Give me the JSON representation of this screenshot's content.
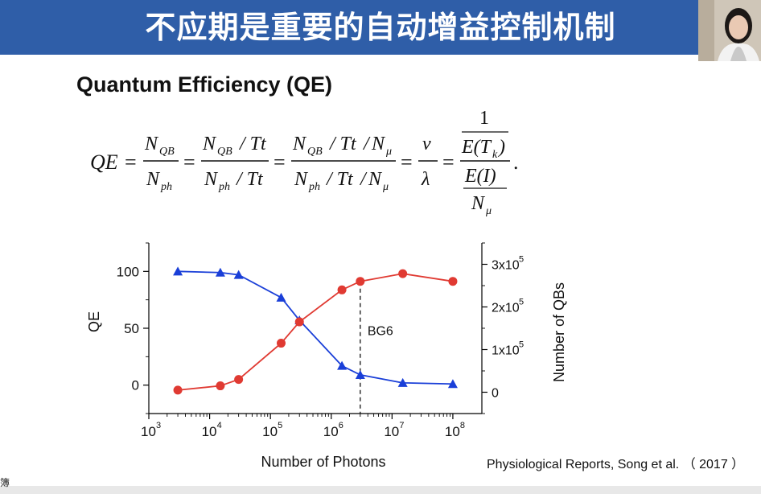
{
  "slide": {
    "title": "不应期是重要的自动增益控制机制",
    "heading": "Quantum Efficiency (QE)",
    "citation": "Physiological Reports, Song et al. （ 2017 ）",
    "corner_glyph": "簿"
  },
  "formula": {
    "qe": "QE",
    "eq": "=",
    "n": "N",
    "qb": "QB",
    "ph": "ph",
    "tt": "/ Tt",
    "mu": "μ",
    "slash": "/",
    "nu": "ν",
    "lambda": "λ",
    "one": "1",
    "etk": "E(T",
    "k": "k",
    "close": ")",
    "ei": "E(I)",
    "period": "."
  },
  "colors": {
    "title_bar": "#2f5ea8",
    "qe_series": "#1a3fd8",
    "qb_series": "#e03a32",
    "axis": "#000000"
  },
  "chart_data": {
    "type": "line",
    "xlabel": "Number of Photons",
    "ylabel_left": "QE",
    "ylabel_right": "Number of QBs",
    "x_scale": "log",
    "xlim": [
      1000,
      300000000
    ],
    "ylim_left": [
      -25,
      125
    ],
    "ylim_right": [
      -50000,
      350000
    ],
    "x_ticks": [
      {
        "value": 1000,
        "base": "10",
        "exp": "3"
      },
      {
        "value": 10000,
        "base": "10",
        "exp": "4"
      },
      {
        "value": 100000,
        "base": "10",
        "exp": "5"
      },
      {
        "value": 1000000,
        "base": "10",
        "exp": "6"
      },
      {
        "value": 10000000,
        "base": "10",
        "exp": "7"
      },
      {
        "value": 100000000,
        "base": "10",
        "exp": "8"
      }
    ],
    "y_ticks_left": [
      {
        "value": 0,
        "label": "0"
      },
      {
        "value": 50,
        "label": "50"
      },
      {
        "value": 100,
        "label": "100"
      }
    ],
    "y_ticks_right": [
      {
        "value": 0,
        "label": "0",
        "exp": ""
      },
      {
        "value": 100000,
        "label": "1x10",
        "exp": "5"
      },
      {
        "value": 200000,
        "label": "2x10",
        "exp": "5"
      },
      {
        "value": 300000,
        "label": "3x10",
        "exp": "5"
      }
    ],
    "series": [
      {
        "axis": "left",
        "marker": "triangle",
        "x": [
          3000,
          15000,
          30000,
          150000,
          300000,
          1500000,
          3000000,
          15000000,
          100000000
        ],
        "values": [
          100,
          99,
          97,
          77,
          57,
          17,
          9,
          2,
          1
        ]
      },
      {
        "axis": "right",
        "marker": "circle",
        "x": [
          3000,
          15000,
          30000,
          150000,
          300000,
          1500000,
          3000000,
          15000000,
          100000000
        ],
        "values": [
          5000,
          15000,
          30000,
          115000,
          165000,
          240000,
          260000,
          278000,
          260000
        ]
      }
    ],
    "annotation": {
      "label": "BG6",
      "x": 3000000
    }
  }
}
